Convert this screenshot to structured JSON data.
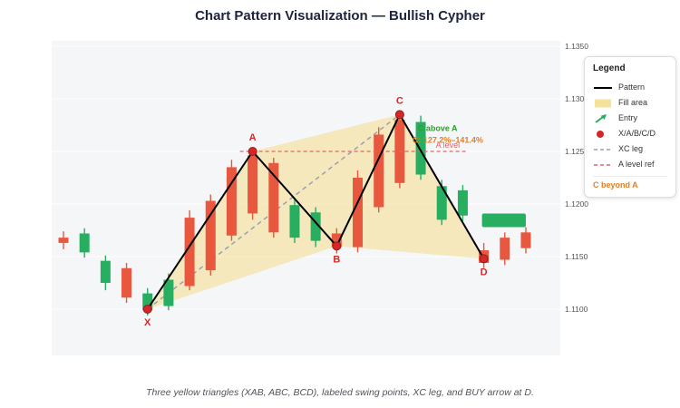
{
  "title": "Chart Pattern Visualization — Bullish Cypher",
  "caption": "Three yellow triangles (XAB, ABC, BCD), labeled swing points, XC leg, and BUY arrow at D.",
  "legend": {
    "title": "Legend",
    "items": [
      {
        "label": "Pattern",
        "swatch": "black-line"
      },
      {
        "label": "Fill area",
        "swatch": "yellow-fill"
      },
      {
        "label": "Entry",
        "swatch": "green-arrow"
      },
      {
        "label": "X/A/B/C/D",
        "swatch": "red-dot"
      },
      {
        "label": "XC leg",
        "swatch": "dashed-slate-line"
      },
      {
        "label": "A level ref",
        "swatch": "dashed-red-line"
      }
    ],
    "footnote": "C beyond A"
  },
  "colors": {
    "up": "#27ae60",
    "down": "#e8583f",
    "pattern": "#000000",
    "xc_leg": "#9aa0b0",
    "a_level": "#e06666",
    "marker": "#d62728",
    "fill": "#f2dd8a",
    "annotation_green": "#2ca02c",
    "annotation_orange": "#e67e22",
    "axis_text": "#555555",
    "plot_bg": "#f5f6f8"
  },
  "chart_data": {
    "type": "candlestick",
    "title": "Chart Pattern Visualization — Bullish Cypher",
    "pattern_name": "Bullish Cypher",
    "y_axis": {
      "ticks": [
        1.11,
        1.115,
        1.12,
        1.125,
        1.13,
        1.135
      ],
      "range": [
        1.1075,
        1.1355
      ]
    },
    "candles": [
      {
        "o": 1.1168,
        "h": 1.1174,
        "l": 1.1157,
        "c": 1.1163
      },
      {
        "o": 1.1154,
        "h": 1.1177,
        "l": 1.1149,
        "c": 1.1172
      },
      {
        "o": 1.1125,
        "h": 1.1151,
        "l": 1.1118,
        "c": 1.1146
      },
      {
        "o": 1.1139,
        "h": 1.1144,
        "l": 1.1106,
        "c": 1.1111
      },
      {
        "o": 1.1099,
        "h": 1.112,
        "l": 1.1094,
        "c": 1.1115
      },
      {
        "o": 1.1103,
        "h": 1.1134,
        "l": 1.1099,
        "c": 1.1128
      },
      {
        "o": 1.1187,
        "h": 1.1194,
        "l": 1.1118,
        "c": 1.1122
      },
      {
        "o": 1.1203,
        "h": 1.1209,
        "l": 1.1132,
        "c": 1.1137
      },
      {
        "o": 1.1235,
        "h": 1.1242,
        "l": 1.1165,
        "c": 1.117
      },
      {
        "o": 1.1246,
        "h": 1.1253,
        "l": 1.1185,
        "c": 1.1191
      },
      {
        "o": 1.1239,
        "h": 1.1244,
        "l": 1.1168,
        "c": 1.1173
      },
      {
        "o": 1.1168,
        "h": 1.1204,
        "l": 1.1163,
        "c": 1.1199
      },
      {
        "o": 1.1165,
        "h": 1.1197,
        "l": 1.1159,
        "c": 1.1192
      },
      {
        "o": 1.1172,
        "h": 1.1177,
        "l": 1.1153,
        "c": 1.1159
      },
      {
        "o": 1.1225,
        "h": 1.1232,
        "l": 1.1154,
        "c": 1.1159
      },
      {
        "o": 1.1266,
        "h": 1.1273,
        "l": 1.1192,
        "c": 1.1197
      },
      {
        "o": 1.128,
        "h": 1.1287,
        "l": 1.1215,
        "c": 1.122
      },
      {
        "o": 1.1228,
        "h": 1.1284,
        "l": 1.1223,
        "c": 1.1278
      },
      {
        "o": 1.1185,
        "h": 1.1223,
        "l": 1.118,
        "c": 1.1217
      },
      {
        "o": 1.1189,
        "h": 1.1218,
        "l": 1.1184,
        "c": 1.1213
      },
      {
        "o": 1.1156,
        "h": 1.1163,
        "l": 1.1139,
        "c": 1.1144
      },
      {
        "o": 1.1168,
        "h": 1.1173,
        "l": 1.1142,
        "c": 1.1147
      },
      {
        "o": 1.1173,
        "h": 1.1178,
        "l": 1.1153,
        "c": 1.1158
      }
    ],
    "pattern_points": [
      {
        "label": "X",
        "index": 4,
        "price": 1.11,
        "label_pos": "below"
      },
      {
        "label": "A",
        "index": 9,
        "price": 1.125,
        "label_pos": "above"
      },
      {
        "label": "B",
        "index": 13,
        "price": 1.116,
        "label_pos": "below"
      },
      {
        "label": "C",
        "index": 16,
        "price": 1.1285,
        "label_pos": "above"
      },
      {
        "label": "D",
        "index": 20,
        "price": 1.1148,
        "label_pos": "below"
      }
    ],
    "triangles": [
      [
        "X",
        "A",
        "B"
      ],
      [
        "A",
        "B",
        "C"
      ],
      [
        "B",
        "C",
        "D"
      ]
    ],
    "xc_leg": [
      "X",
      "C"
    ],
    "a_level": {
      "price": 1.125,
      "label": "A level"
    },
    "annotations": [
      {
        "text": "C above A",
        "color": "#2ca02c"
      },
      {
        "text": "C: 127.2%–141.4%",
        "color": "#e67e22"
      }
    ],
    "buy_marker": {
      "from_index": 20,
      "to_index": 22,
      "price_top": 1.1191,
      "price_bottom": 1.1178
    }
  }
}
